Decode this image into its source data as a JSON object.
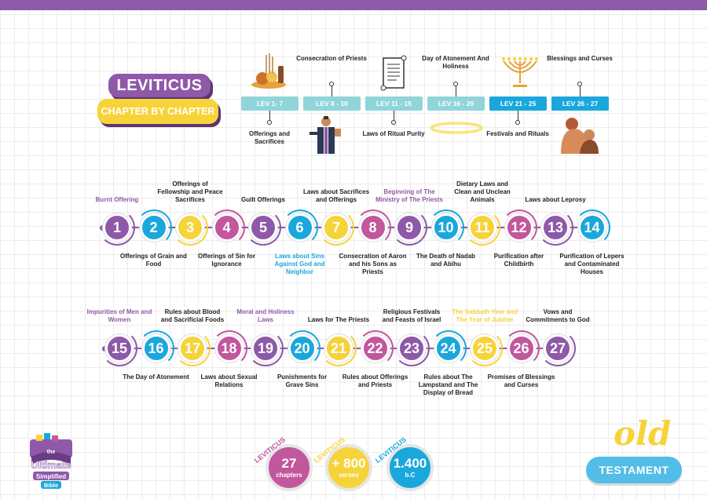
{
  "title": {
    "main": "LEVITICUS",
    "sub": "CHAPTER BY CHAPTER"
  },
  "timeline": [
    {
      "range": "LEV 1- 7",
      "label": "Offerings and Sacrifices",
      "pos": "below",
      "color": "#8fd5da",
      "icon": "offerings-icon"
    },
    {
      "range": "LEV  8 - 10",
      "label": "Consecration of Priests",
      "pos": "above",
      "color": "#8fd5da",
      "icon": "priest-icon"
    },
    {
      "range": "LEV 11 - 15",
      "label": "Laws of Ritual Purity",
      "pos": "below",
      "color": "#8fd5da",
      "icon": "scroll-icon"
    },
    {
      "range": "LEV 16 - 20",
      "label": "Day of Atonement And Holiness",
      "pos": "above",
      "color": "#8fd5da",
      "icon": "halo-icon"
    },
    {
      "range": "LEV 21 - 25",
      "label": "Festivals and Rituals",
      "pos": "below",
      "color": "#1aa8dc",
      "icon": "menorah-icon"
    },
    {
      "range": "LEV 26 - 27",
      "label": "Blessings and Curses",
      "pos": "above",
      "color": "#1aa8dc",
      "icon": "blessing-icon"
    }
  ],
  "row1": [
    {
      "n": "1",
      "color": "#8e59a8",
      "label": "Burnt Offering",
      "pos": "above",
      "lc": "#8e59a8"
    },
    {
      "n": "2",
      "color": "#1aa8dc",
      "label": "Offerings of Grain and Food",
      "pos": "below",
      "lc": "#222"
    },
    {
      "n": "3",
      "color": "#f7d33a",
      "label": "Offerings of Fellowship and Peace Sacrifices",
      "pos": "above",
      "lc": "#222"
    },
    {
      "n": "4",
      "color": "#c2579e",
      "label": "Offerings of Sin for Ignorance",
      "pos": "below",
      "lc": "#222"
    },
    {
      "n": "5",
      "color": "#8e59a8",
      "label": "Guilt Offerings",
      "pos": "above",
      "lc": "#222"
    },
    {
      "n": "6",
      "color": "#1aa8dc",
      "label": "Laws about Sins Against God and Neighbor",
      "pos": "below",
      "lc": "#1aa8dc"
    },
    {
      "n": "7",
      "color": "#f7d33a",
      "label": "Laws about Sacrifices and Offerings",
      "pos": "above",
      "lc": "#222"
    },
    {
      "n": "8",
      "color": "#c2579e",
      "label": "Consecration of Aaron and his Sons as Priests",
      "pos": "below",
      "lc": "#222"
    },
    {
      "n": "9",
      "color": "#8e59a8",
      "label": "Beginning of The Ministry of The Priests",
      "pos": "above",
      "lc": "#8e59a8"
    },
    {
      "n": "10",
      "color": "#1aa8dc",
      "label": "The Death of Nadab and Abihu",
      "pos": "below",
      "lc": "#222"
    },
    {
      "n": "11",
      "color": "#f7d33a",
      "label": "Dietary Laws and Clean and Unclean Animals",
      "pos": "above",
      "lc": "#222"
    },
    {
      "n": "12",
      "color": "#c2579e",
      "label": "Purification after Childbirth",
      "pos": "below",
      "lc": "#222"
    },
    {
      "n": "13",
      "color": "#8e59a8",
      "label": "Laws about Leprosy",
      "pos": "above",
      "lc": "#222"
    },
    {
      "n": "14",
      "color": "#1aa8dc",
      "label": "Purification of Lepers and Contaminated Houses",
      "pos": "below",
      "lc": "#222"
    }
  ],
  "row2": [
    {
      "n": "15",
      "color": "#8e59a8",
      "label": "Impurities of Men and Women",
      "pos": "above",
      "lc": "#8e59a8"
    },
    {
      "n": "16",
      "color": "#1aa8dc",
      "label": "The Day of Atonement",
      "pos": "below",
      "lc": "#222"
    },
    {
      "n": "17",
      "color": "#f7d33a",
      "label": "Rules about Blood and Sacrificial Foods",
      "pos": "above",
      "lc": "#222"
    },
    {
      "n": "18",
      "color": "#c2579e",
      "label": "Laws about Sexual Relations",
      "pos": "below",
      "lc": "#222"
    },
    {
      "n": "19",
      "color": "#8e59a8",
      "label": "Moral and Holiness Laws",
      "pos": "above",
      "lc": "#8e59a8"
    },
    {
      "n": "20",
      "color": "#1aa8dc",
      "label": "Punishments for Grave Sins",
      "pos": "below",
      "lc": "#222"
    },
    {
      "n": "21",
      "color": "#f7d33a",
      "label": "Laws for The Priests",
      "pos": "above",
      "lc": "#222"
    },
    {
      "n": "22",
      "color": "#c2579e",
      "label": "Rules about Offerings and Priests",
      "pos": "below",
      "lc": "#222"
    },
    {
      "n": "23",
      "color": "#8e59a8",
      "label": "Religious Festivals and Feasts of Israel",
      "pos": "above",
      "lc": "#222"
    },
    {
      "n": "24",
      "color": "#1aa8dc",
      "label": "Rules about The Lampstand and The Display of Bread",
      "pos": "below",
      "lc": "#222"
    },
    {
      "n": "25",
      "color": "#f7d33a",
      "label": "The Sabbath Year and The Year of Jubilee",
      "pos": "above",
      "lc": "#f7d33a"
    },
    {
      "n": "26",
      "color": "#c2579e",
      "label": "Promises of Blessings and Curses",
      "pos": "below",
      "lc": "#222"
    },
    {
      "n": "27",
      "color": "#8e59a8",
      "label": "Vows and Commitments to God",
      "pos": "above",
      "lc": "#222"
    }
  ],
  "stats": [
    {
      "tag": "LEVITICUS",
      "big": "27",
      "small": "chapters",
      "color": "#c2579e"
    },
    {
      "tag": "LEVITICUS",
      "big": "+ 800",
      "small": "verses",
      "color": "#f7d33a"
    },
    {
      "tag": "LEVITICUS",
      "big": "1.400",
      "small": "b.C",
      "color": "#1aa8dc"
    }
  ],
  "logo": {
    "line1": "the",
    "line2": "Ultimate",
    "line3": "Simplified",
    "line4": "Bible"
  },
  "footer": {
    "old": "old",
    "testament": "TESTAMENT"
  }
}
